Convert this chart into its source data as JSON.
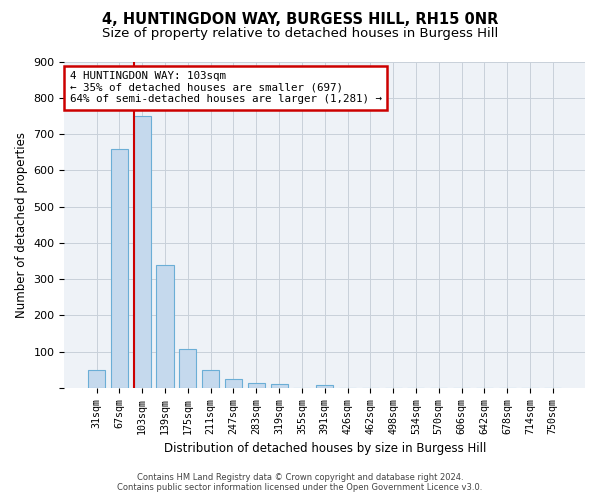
{
  "title": "4, HUNTINGDON WAY, BURGESS HILL, RH15 0NR",
  "subtitle": "Size of property relative to detached houses in Burgess Hill",
  "xlabel": "Distribution of detached houses by size in Burgess Hill",
  "ylabel": "Number of detached properties",
  "footer_line1": "Contains HM Land Registry data © Crown copyright and database right 2024.",
  "footer_line2": "Contains public sector information licensed under the Open Government Licence v3.0.",
  "bar_labels": [
    "31sqm",
    "67sqm",
    "103sqm",
    "139sqm",
    "175sqm",
    "211sqm",
    "247sqm",
    "283sqm",
    "319sqm",
    "355sqm",
    "391sqm",
    "426sqm",
    "462sqm",
    "498sqm",
    "534sqm",
    "570sqm",
    "606sqm",
    "642sqm",
    "678sqm",
    "714sqm",
    "750sqm"
  ],
  "bar_values": [
    50,
    660,
    750,
    340,
    108,
    50,
    25,
    15,
    12,
    0,
    8,
    0,
    0,
    0,
    0,
    0,
    0,
    0,
    0,
    0,
    0
  ],
  "bar_color": "#c5d9ed",
  "bar_edge_color": "#6baed6",
  "highlight_bar_index": 2,
  "highlight_color": "#cc0000",
  "annotation_line1": "4 HUNTINGDON WAY: 103sqm",
  "annotation_line2": "← 35% of detached houses are smaller (697)",
  "annotation_line3": "64% of semi-detached houses are larger (1,281) →",
  "annotation_box_color": "#cc0000",
  "annotation_box_fill": "#ffffff",
  "ylim": [
    0,
    900
  ],
  "yticks": [
    0,
    100,
    200,
    300,
    400,
    500,
    600,
    700,
    800,
    900
  ],
  "background_color": "#eef2f7",
  "grid_color": "#c8d0da",
  "title_fontsize": 10.5,
  "subtitle_fontsize": 9.5,
  "bar_width": 0.75
}
